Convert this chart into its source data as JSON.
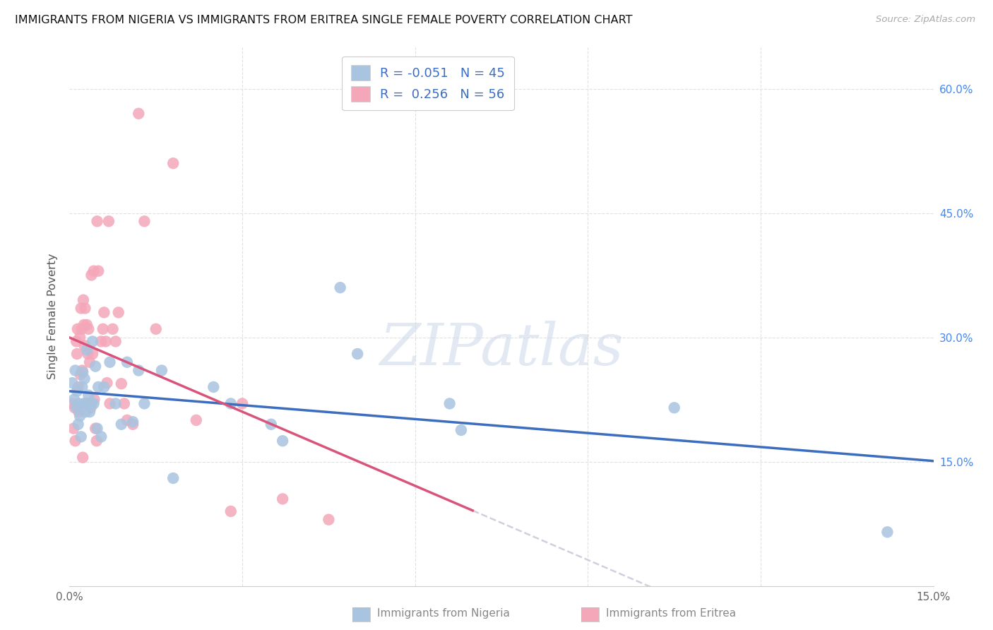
{
  "title": "IMMIGRANTS FROM NIGERIA VS IMMIGRANTS FROM ERITREA SINGLE FEMALE POVERTY CORRELATION CHART",
  "source": "Source: ZipAtlas.com",
  "ylabel": "Single Female Poverty",
  "xlabel_nigeria": "Immigrants from Nigeria",
  "xlabel_eritrea": "Immigrants from Eritrea",
  "xlim": [
    0.0,
    0.15
  ],
  "ylim": [
    0.0,
    0.65
  ],
  "yticks_right": [
    0.15,
    0.3,
    0.45,
    0.6
  ],
  "ytick_labels_right": [
    "15.0%",
    "30.0%",
    "45.0%",
    "60.0%"
  ],
  "nigeria_R": -0.051,
  "nigeria_N": 45,
  "eritrea_R": 0.256,
  "eritrea_N": 56,
  "nigeria_color": "#a8c4e0",
  "eritrea_color": "#f4a7b9",
  "nigeria_line_color": "#3d6dbf",
  "eritrea_line_color": "#d9547a",
  "dashed_line_color": "#c8c8d8",
  "background_color": "#ffffff",
  "grid_color": "#e0e0e0",
  "nigeria_x": [
    0.0005,
    0.0008,
    0.001,
    0.0012,
    0.0013,
    0.0015,
    0.0016,
    0.0018,
    0.002,
    0.0022,
    0.0023,
    0.0025,
    0.0026,
    0.0028,
    0.003,
    0.0032,
    0.0033,
    0.0035,
    0.0038,
    0.004,
    0.0042,
    0.0045,
    0.0048,
    0.005,
    0.0055,
    0.006,
    0.007,
    0.008,
    0.009,
    0.01,
    0.011,
    0.012,
    0.013,
    0.016,
    0.018,
    0.025,
    0.028,
    0.035,
    0.037,
    0.047,
    0.05,
    0.066,
    0.068,
    0.105,
    0.142
  ],
  "nigeria_y": [
    0.245,
    0.225,
    0.26,
    0.215,
    0.235,
    0.195,
    0.22,
    0.205,
    0.18,
    0.24,
    0.258,
    0.22,
    0.25,
    0.21,
    0.285,
    0.22,
    0.23,
    0.21,
    0.22,
    0.295,
    0.22,
    0.265,
    0.19,
    0.24,
    0.18,
    0.24,
    0.27,
    0.22,
    0.195,
    0.27,
    0.198,
    0.26,
    0.22,
    0.26,
    0.13,
    0.24,
    0.22,
    0.195,
    0.175,
    0.36,
    0.28,
    0.22,
    0.188,
    0.215,
    0.065
  ],
  "eritrea_x": [
    0.0005,
    0.0007,
    0.0009,
    0.001,
    0.0012,
    0.0013,
    0.0014,
    0.0015,
    0.0016,
    0.0018,
    0.0019,
    0.002,
    0.0021,
    0.0022,
    0.0023,
    0.0024,
    0.0025,
    0.0026,
    0.0027,
    0.0028,
    0.003,
    0.0032,
    0.0033,
    0.0035,
    0.0037,
    0.0038,
    0.004,
    0.0042,
    0.0043,
    0.0045,
    0.0047,
    0.0048,
    0.005,
    0.0055,
    0.0058,
    0.006,
    0.0063,
    0.0065,
    0.0068,
    0.007,
    0.0075,
    0.008,
    0.0085,
    0.009,
    0.0095,
    0.01,
    0.011,
    0.012,
    0.013,
    0.015,
    0.018,
    0.022,
    0.028,
    0.03,
    0.037,
    0.045
  ],
  "eritrea_y": [
    0.22,
    0.19,
    0.215,
    0.175,
    0.295,
    0.28,
    0.31,
    0.24,
    0.21,
    0.3,
    0.255,
    0.335,
    0.31,
    0.26,
    0.155,
    0.345,
    0.315,
    0.29,
    0.335,
    0.22,
    0.315,
    0.28,
    0.31,
    0.27,
    0.215,
    0.375,
    0.28,
    0.38,
    0.225,
    0.19,
    0.175,
    0.44,
    0.38,
    0.295,
    0.31,
    0.33,
    0.295,
    0.245,
    0.44,
    0.22,
    0.31,
    0.295,
    0.33,
    0.244,
    0.22,
    0.2,
    0.195,
    0.57,
    0.44,
    0.31,
    0.51,
    0.2,
    0.09,
    0.22,
    0.105,
    0.08
  ]
}
